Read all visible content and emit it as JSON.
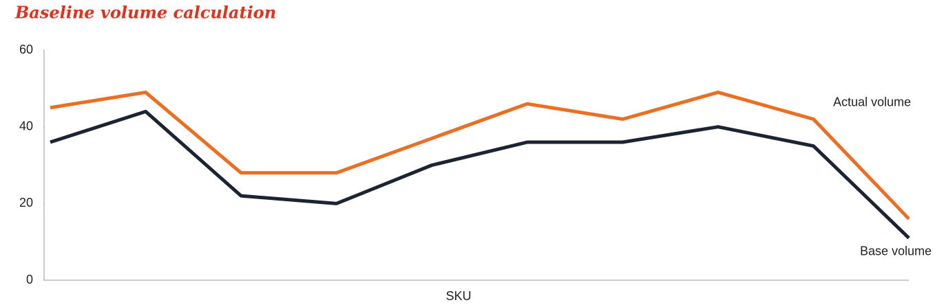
{
  "chart_data": {
    "type": "line",
    "title": "Baseline volume calculation",
    "x_label": "SKU",
    "categories": [
      null,
      null,
      null,
      null,
      null,
      null,
      null,
      null,
      null,
      null
    ],
    "series": [
      {
        "name": "Actual volume",
        "color": "#eb6f22",
        "values": [
          45,
          49,
          28,
          28,
          37,
          46,
          42,
          49,
          42,
          16
        ]
      },
      {
        "name": "Base volume",
        "color": "#1c2333",
        "values": [
          36,
          44,
          22,
          20,
          30,
          36,
          36,
          40,
          35,
          11
        ]
      }
    ],
    "ylim": [
      0,
      60
    ],
    "yticks": [
      0,
      20,
      40,
      60
    ],
    "grid": false
  }
}
